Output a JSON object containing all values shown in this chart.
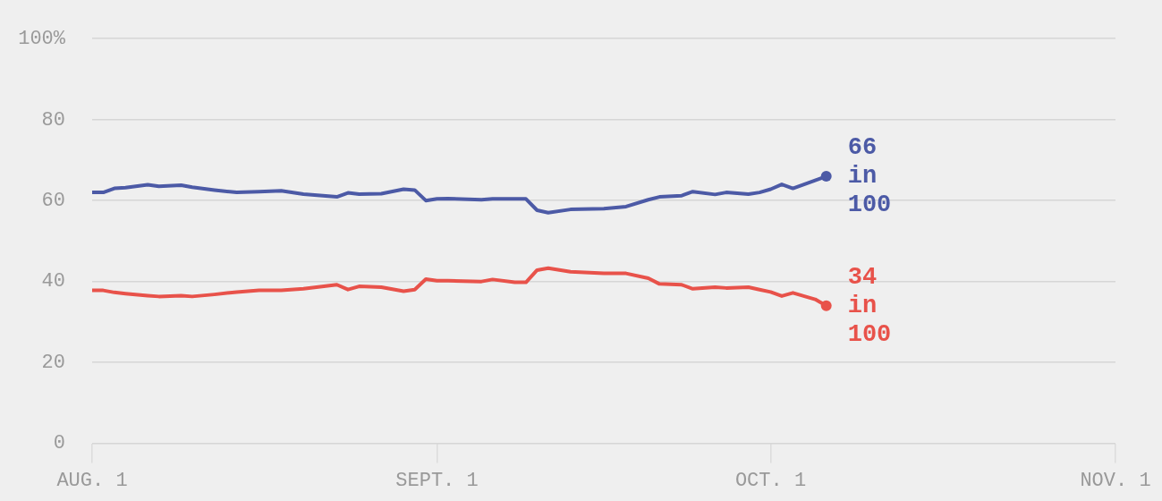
{
  "chart_data": {
    "type": "line",
    "x": [
      "--08-01",
      "--08-02",
      "--08-03",
      "--08-04",
      "--08-06",
      "--08-07",
      "--08-09",
      "--08-10",
      "--08-12",
      "--08-14",
      "--08-16",
      "--08-18",
      "--08-20",
      "--08-23",
      "--08-24",
      "--08-25",
      "--08-27",
      "--08-29",
      "--08-30",
      "--08-31",
      "--09-01",
      "--09-02",
      "--09-05",
      "--09-06",
      "--09-08",
      "--09-09",
      "--09-10",
      "--09-11",
      "--09-13",
      "--09-16",
      "--09-18",
      "--09-20",
      "--09-21",
      "--09-23",
      "--09-24",
      "--09-26",
      "--09-27",
      "--09-29",
      "--09-30",
      "--10-01",
      "--10-02",
      "--10-03",
      "--10-05",
      "--10-06"
    ],
    "series": [
      {
        "color": "#4c5aa6",
        "values": [
          62,
          62,
          63,
          63.2,
          63.9,
          63.5,
          63.8,
          63.3,
          62.6,
          62,
          62.2,
          62.4,
          61.6,
          60.9,
          61.9,
          61.6,
          61.7,
          62.8,
          62.6,
          60,
          60.4,
          60.5,
          60.2,
          60.4,
          60.4,
          60.4,
          57.6,
          57,
          57.8,
          58,
          58.5,
          60.2,
          60.9,
          61.2,
          62.2,
          61.5,
          62,
          61.6,
          62,
          62.8,
          64,
          63,
          65,
          66
        ]
      },
      {
        "color": "#e8524a",
        "values": [
          37.8,
          37.8,
          37.3,
          37,
          36.5,
          36.3,
          36.5,
          36.3,
          36.8,
          37.4,
          37.8,
          37.8,
          38.2,
          39.2,
          38,
          38.8,
          38.6,
          37.6,
          38,
          40.6,
          40.2,
          40.2,
          40,
          40.5,
          39.8,
          39.8,
          42.8,
          43.3,
          42.4,
          42,
          42,
          40.8,
          39.4,
          39.2,
          38.2,
          38.6,
          38.4,
          38.6,
          38,
          37.4,
          36.4,
          37.2,
          35.6,
          34
        ]
      }
    ],
    "annotations": [
      {
        "text": "66 in 100",
        "x": "--10-06",
        "y": 66
      },
      {
        "text": "34 in 100",
        "x": "--10-06",
        "y": 34
      }
    ],
    "xlim": [
      "--08-01",
      "--11-01"
    ],
    "xticks": [
      {
        "value": "--08-01",
        "label": "AUG. 1"
      },
      {
        "value": "--09-01",
        "label": "SEPT. 1"
      },
      {
        "value": "--10-01",
        "label": "OCT. 1"
      },
      {
        "value": "--11-01",
        "label": "NOV. 1"
      }
    ],
    "ylim": [
      0,
      100
    ],
    "yticks": [
      0,
      20,
      40,
      60,
      80,
      {
        "value": 100,
        "label": "100%"
      }
    ],
    "grid": "y",
    "legend": false,
    "line_style": "solid"
  }
}
